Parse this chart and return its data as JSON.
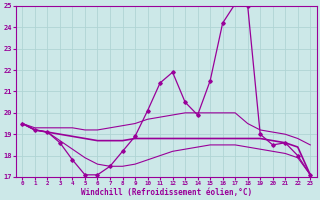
{
  "xlabel": "Windchill (Refroidissement éolien,°C)",
  "bg_color": "#cce8e8",
  "grid_color": "#b0d4d4",
  "line_color": "#990099",
  "x": [
    0,
    1,
    2,
    3,
    4,
    5,
    6,
    7,
    8,
    9,
    10,
    11,
    12,
    13,
    14,
    15,
    16,
    17,
    18,
    19,
    20,
    21,
    22,
    23
  ],
  "y_main": [
    19.5,
    19.2,
    19.1,
    18.6,
    17.8,
    17.1,
    17.1,
    17.5,
    18.2,
    18.9,
    20.1,
    21.4,
    21.9,
    20.5,
    19.9,
    21.5,
    24.2,
    25.1,
    25.0,
    19.0,
    18.5,
    18.6,
    18.0,
    17.1
  ],
  "y_upper": [
    19.5,
    19.3,
    19.3,
    19.3,
    19.3,
    19.2,
    19.2,
    19.3,
    19.4,
    19.5,
    19.7,
    19.8,
    19.9,
    20.0,
    20.0,
    20.0,
    20.0,
    20.0,
    19.5,
    19.2,
    19.1,
    19.0,
    18.8,
    18.5
  ],
  "y_mid": [
    19.5,
    19.2,
    19.1,
    19.0,
    18.9,
    18.8,
    18.7,
    18.7,
    18.7,
    18.8,
    18.8,
    18.8,
    18.8,
    18.8,
    18.8,
    18.8,
    18.8,
    18.8,
    18.8,
    18.8,
    18.7,
    18.6,
    18.4,
    17.1
  ],
  "y_lower": [
    19.5,
    19.2,
    19.1,
    18.7,
    18.3,
    17.9,
    17.6,
    17.5,
    17.5,
    17.6,
    17.8,
    18.0,
    18.2,
    18.3,
    18.4,
    18.5,
    18.5,
    18.5,
    18.4,
    18.3,
    18.2,
    18.1,
    17.9,
    17.1
  ],
  "ylim": [
    17,
    25
  ],
  "yticks": [
    17,
    18,
    19,
    20,
    21,
    22,
    23,
    24,
    25
  ],
  "xlim": [
    -0.5,
    23.5
  ],
  "xticks": [
    0,
    1,
    2,
    3,
    4,
    5,
    6,
    7,
    8,
    9,
    10,
    11,
    12,
    13,
    14,
    15,
    16,
    17,
    18,
    19,
    20,
    21,
    22,
    23
  ]
}
